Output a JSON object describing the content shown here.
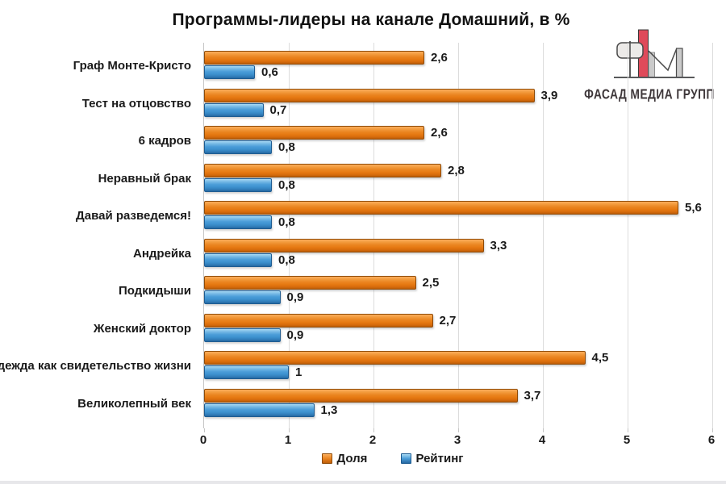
{
  "title": "Программы-лидеры на канале Домашний, в %",
  "logo": {
    "text": "ФАСАД МЕДИА ГРУПП",
    "accent_red": "#DF4A5A",
    "grey_fill": "#CBCBCB",
    "light_fill": "#ECEAE8",
    "outline": "#4A4A4A"
  },
  "chart_data": {
    "type": "bar",
    "orientation": "horizontal",
    "title": "Программы-лидеры на канале Домашний, в %",
    "categories": [
      "Граф Монте-Кристо",
      "Тест на отцовство",
      "6 кадров",
      "Неравный брак",
      "Давай разведемся!",
      "Андрейка",
      "Подкидыши",
      "Женский доктор",
      "Надежда как свидетельство жизни",
      "Великолепный век"
    ],
    "series": [
      {
        "name": "Доля",
        "color": "#E87C17",
        "values": [
          2.6,
          3.9,
          2.6,
          2.8,
          5.6,
          3.3,
          2.5,
          2.7,
          4.5,
          3.7
        ],
        "labels": [
          "2,6",
          "3,9",
          "2,6",
          "2,8",
          "5,6",
          "3,3",
          "2,5",
          "2,7",
          "4,5",
          "3,7"
        ]
      },
      {
        "name": "Рейтинг",
        "color": "#3F95D2",
        "values": [
          0.6,
          0.7,
          0.8,
          0.8,
          0.8,
          0.8,
          0.9,
          0.9,
          1,
          1.3
        ],
        "labels": [
          "0,6",
          "0,7",
          "0,8",
          "0,8",
          "0,8",
          "0,8",
          "0,9",
          "0,9",
          "1",
          "1,3"
        ]
      }
    ],
    "xlim": [
      0,
      6
    ],
    "x_ticks": [
      "0",
      "1",
      "2",
      "3",
      "4",
      "5",
      "6"
    ],
    "grid": true,
    "legend_position": "bottom-center"
  }
}
